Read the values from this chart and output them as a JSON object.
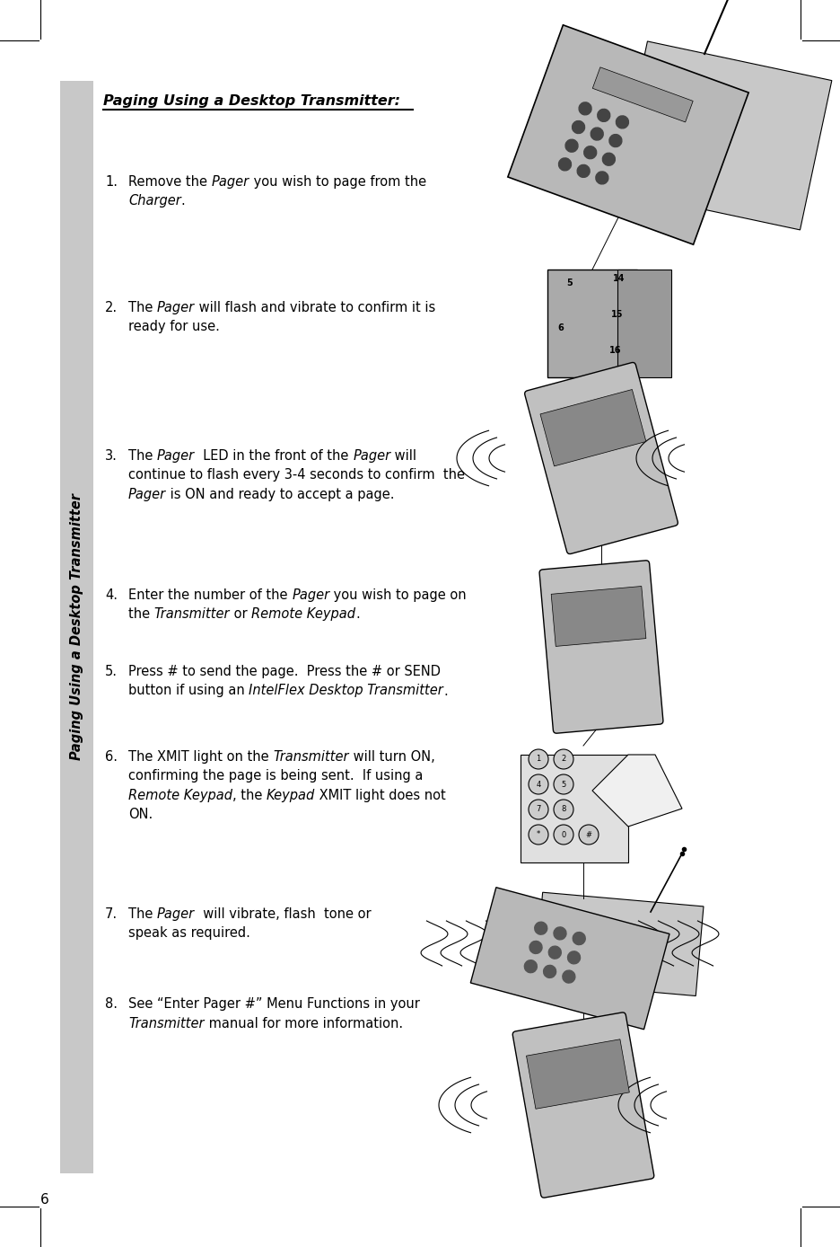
{
  "page_bg": "#ffffff",
  "sidebar_color": "#c8c8c8",
  "sidebar_text": "Paging Using a Desktop Transmitter",
  "title": "Paging Using a Desktop Transmitter:",
  "page_number": "6",
  "items": [
    {
      "num": "1.",
      "lines_data": [
        [
          [
            "Remove the ",
            false
          ],
          [
            "Pager",
            true
          ],
          [
            " you wish to page from the",
            false
          ]
        ],
        [
          [
            "Charger",
            true
          ],
          [
            ".",
            false
          ]
        ]
      ]
    },
    {
      "num": "2.",
      "lines_data": [
        [
          [
            "The ",
            false
          ],
          [
            "Pager",
            true
          ],
          [
            " will flash and vibrate to confirm it is",
            false
          ]
        ],
        [
          [
            "ready for use.",
            false
          ]
        ]
      ]
    },
    {
      "num": "3.",
      "lines_data": [
        [
          [
            "The ",
            false
          ],
          [
            "Pager",
            true
          ],
          [
            "  LED in the front of the ",
            false
          ],
          [
            "Pager",
            true
          ],
          [
            " will",
            false
          ]
        ],
        [
          [
            "continue to flash every 3-4 seconds to confirm  the",
            false
          ]
        ],
        [
          [
            "Pager",
            true
          ],
          [
            " is ON and ready to accept a page.",
            false
          ]
        ]
      ]
    },
    {
      "num": "4.",
      "lines_data": [
        [
          [
            "Enter the number of the ",
            false
          ],
          [
            "Pager",
            true
          ],
          [
            " you wish to page on",
            false
          ]
        ],
        [
          [
            "the ",
            false
          ],
          [
            "Transmitter",
            true
          ],
          [
            " or ",
            false
          ],
          [
            "Remote Keypad",
            true
          ],
          [
            ".",
            false
          ]
        ]
      ]
    },
    {
      "num": "5.",
      "lines_data": [
        [
          [
            "Press # to send the page.  Press the # or SEND",
            false
          ]
        ],
        [
          [
            "button if using an ",
            false
          ],
          [
            "IntelFlex Desktop Transmitter",
            true
          ],
          [
            ".",
            false
          ]
        ]
      ]
    },
    {
      "num": "6.",
      "lines_data": [
        [
          [
            "The XMIT light on the ",
            false
          ],
          [
            "Transmitter",
            true
          ],
          [
            " will turn ON,",
            false
          ]
        ],
        [
          [
            "confirming the page is being sent.  If using a",
            false
          ]
        ],
        [
          [
            "Remote Keypad",
            true
          ],
          [
            ", the ",
            false
          ],
          [
            "Keypad",
            true
          ],
          [
            " XMIT light does not",
            false
          ]
        ],
        [
          [
            "ON.",
            false
          ]
        ]
      ]
    },
    {
      "num": "7.",
      "lines_data": [
        [
          [
            "The ",
            false
          ],
          [
            "Pager",
            true
          ],
          [
            "  will vibrate, flash  tone or",
            false
          ]
        ],
        [
          [
            "speak as required.",
            false
          ]
        ]
      ]
    },
    {
      "num": "8.",
      "lines_data": [
        [
          [
            "See “Enter Pager #” Menu Functions in your",
            false
          ]
        ],
        [
          [
            "Transmitter",
            true
          ],
          [
            " manual for more information.",
            false
          ]
        ]
      ]
    }
  ]
}
